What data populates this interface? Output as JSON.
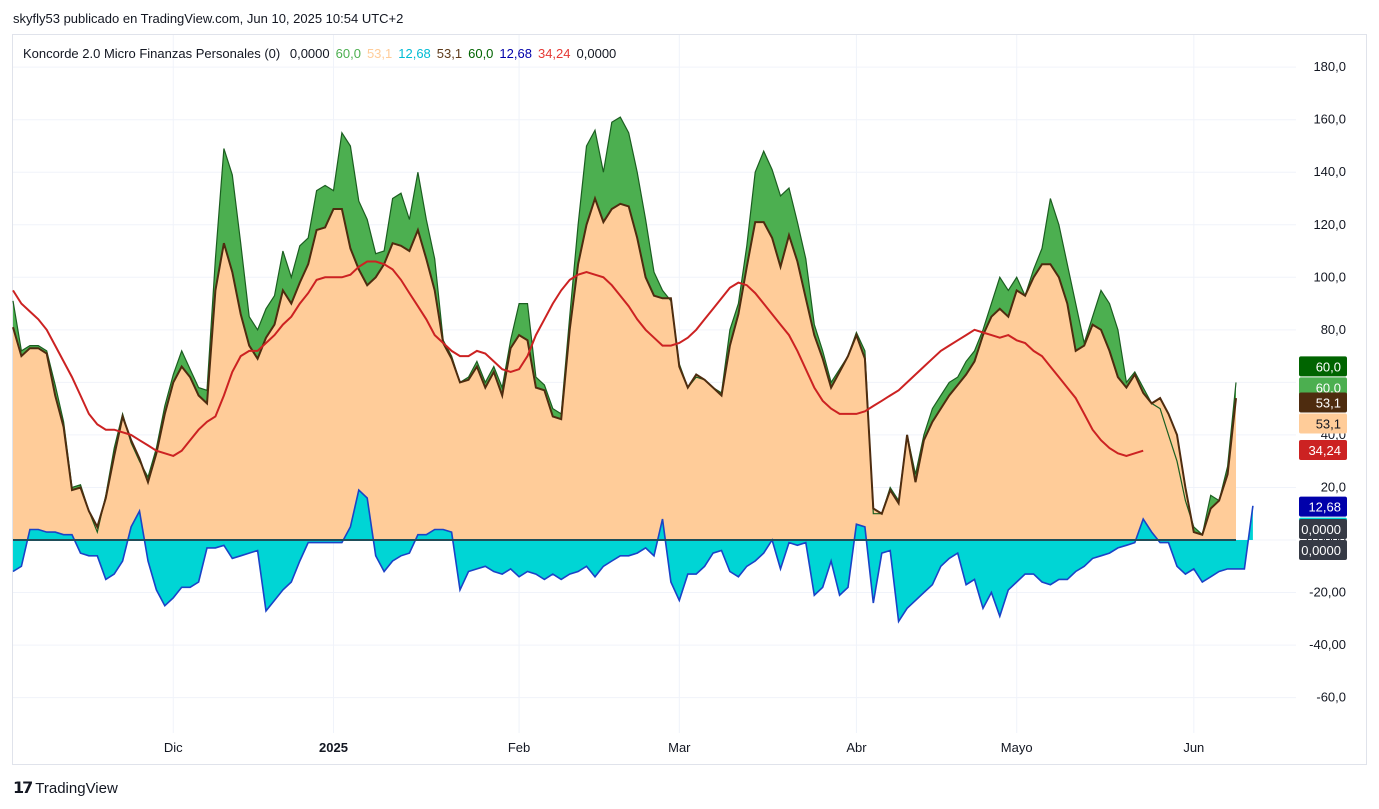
{
  "header": {
    "publisher_line": "skyfly53 publicado en TradingView.com, Jun 10, 2025 10:54 UTC+2"
  },
  "legend": {
    "name": "Koncorde 2.0 Micro Finanzas Personales (0)",
    "values": [
      {
        "text": "0,0000",
        "color": "#131722"
      },
      {
        "text": "60,0",
        "color": "#4caf50"
      },
      {
        "text": "53,1",
        "color": "#ffcc99"
      },
      {
        "text": "12,68",
        "color": "#00bcd4"
      },
      {
        "text": "53,1",
        "color": "#5d3a1a"
      },
      {
        "text": "60,0",
        "color": "#006400"
      },
      {
        "text": "12,68",
        "color": "#0000aa"
      },
      {
        "text": "34,24",
        "color": "#e53935"
      },
      {
        "text": "0,0000",
        "color": "#131722"
      }
    ]
  },
  "footer": {
    "brand": "TradingView",
    "logo_icon": "tradingview-logo-icon"
  },
  "chart_data": {
    "type": "area",
    "x_tick_labels": [
      "Dic",
      "2025",
      "Feb",
      "Mar",
      "Abr",
      "Mayo",
      "Jun"
    ],
    "x_tick_index": [
      19,
      38,
      60,
      79,
      100,
      119,
      140
    ],
    "y_tick_labels": [
      "180,0",
      "160,0",
      "140,0",
      "120,0",
      "100,0",
      "80,0",
      "60,0",
      "40,0",
      "20,0",
      "0,0000",
      "-20,00",
      "-40,00",
      "-60,0"
    ],
    "ylim": [
      -67,
      193
    ],
    "grid": true,
    "series": [
      {
        "color": "#4caf50",
        "outline": "#1b5e20",
        "values": [
          91,
          72,
          74,
          74,
          72,
          59,
          45,
          20,
          21,
          11,
          3,
          17,
          35,
          48,
          37,
          30,
          24,
          35,
          51,
          63,
          72,
          65,
          58,
          57,
          107,
          149,
          139,
          113,
          85,
          80,
          88,
          93,
          110,
          100,
          112,
          115,
          133,
          135,
          133,
          155,
          150,
          129,
          122,
          109,
          110,
          130,
          132,
          122,
          140,
          122,
          107,
          76,
          70,
          60,
          62,
          68,
          60,
          66,
          58,
          76,
          90,
          90,
          62,
          59,
          50,
          48,
          85,
          120,
          150,
          156,
          140,
          159,
          161,
          155,
          140,
          122,
          102,
          95,
          91,
          67,
          58,
          62,
          61,
          58,
          56,
          80,
          90,
          112,
          140,
          148,
          141,
          131,
          134,
          121,
          107,
          82,
          72,
          60,
          65,
          70,
          79,
          72,
          10,
          10,
          20,
          15,
          40,
          25,
          40,
          50,
          55,
          60,
          62,
          68,
          72,
          80,
          90,
          100,
          95,
          100,
          93,
          103,
          111,
          130,
          120,
          105,
          90,
          75,
          85,
          95,
          90,
          80,
          60,
          64,
          58,
          52,
          50,
          40,
          30,
          15,
          5,
          2,
          17,
          15,
          28,
          60
        ]
      },
      {
        "color": "#ffcc99",
        "outline": "#4e2c0f",
        "values": [
          81,
          70,
          73,
          73,
          71,
          55,
          43,
          19,
          20,
          11,
          5,
          16,
          32,
          47,
          38,
          31,
          22,
          33,
          48,
          60,
          66,
          62,
          55,
          52,
          95,
          113,
          102,
          86,
          74,
          69,
          77,
          82,
          95,
          90,
          98,
          105,
          118,
          119,
          126,
          126,
          111,
          103,
          97,
          100,
          105,
          113,
          112,
          110,
          118,
          107,
          95,
          75,
          69,
          60,
          61,
          66,
          58,
          64,
          55,
          73,
          78,
          76,
          58,
          57,
          47,
          46,
          80,
          105,
          120,
          130,
          121,
          126,
          128,
          127,
          115,
          100,
          93,
          92,
          92,
          66,
          58,
          63,
          61,
          58,
          55,
          74,
          86,
          104,
          121,
          121,
          115,
          104,
          116,
          106,
          92,
          78,
          69,
          58,
          64,
          70,
          78,
          69,
          12,
          10,
          19,
          14,
          40,
          22,
          38,
          45,
          50,
          55,
          59,
          63,
          68,
          78,
          85,
          88,
          85,
          95,
          93,
          100,
          105,
          105,
          100,
          90,
          72,
          74,
          82,
          80,
          72,
          62,
          58,
          63,
          56,
          52,
          54,
          48,
          40,
          20,
          3,
          2,
          12,
          15,
          25,
          54
        ]
      },
      {
        "color": "#00d5d5",
        "outline": "#1a43c7",
        "values": [
          -12,
          -10,
          4,
          4,
          3,
          3,
          2,
          2,
          -5,
          -6,
          -6,
          -15,
          -13,
          -8,
          5,
          11,
          -8,
          -19,
          -25,
          -22,
          -18,
          -18,
          -16,
          -3,
          -3,
          -2,
          -7,
          -6,
          -5,
          -4,
          -27,
          -23,
          -19,
          -16,
          -8,
          -1,
          -1,
          -1,
          -1,
          -1,
          5,
          19,
          16,
          -6,
          -12,
          -8,
          -6,
          -5,
          2,
          2,
          4,
          4,
          3,
          -19,
          -12,
          -11,
          -10,
          -12,
          -13,
          -11,
          -14,
          -12,
          -13,
          -15,
          -13,
          -15,
          -13,
          -12,
          -10,
          -14,
          -10,
          -8,
          -6,
          -6,
          -5,
          -3,
          -6,
          8,
          -16,
          -23,
          -13,
          -13,
          -10,
          -5,
          -4,
          -12,
          -14,
          -10,
          -8,
          -5,
          0,
          -11,
          -1,
          -2,
          -1,
          -21,
          -18,
          -8,
          -21,
          -18,
          6,
          5,
          -24,
          -5,
          -4,
          -31,
          -26,
          -23,
          -20,
          -17,
          -10,
          -7,
          -5,
          -17,
          -15,
          -26,
          -20,
          -29,
          -19,
          -16,
          -13,
          -13,
          -16,
          -17,
          -15,
          -15,
          -12,
          -10,
          -7,
          -6,
          -5,
          -3,
          -2,
          -1,
          8,
          3,
          -1,
          -1,
          -10,
          -13,
          -11,
          -16,
          -14,
          -12,
          -11,
          -11,
          -11,
          13
        ]
      },
      {
        "color": "#cc2222",
        "values": [
          95,
          90,
          87,
          84,
          80,
          74,
          68,
          62,
          55,
          48,
          44,
          42,
          42,
          41,
          40,
          38,
          36,
          34,
          33,
          32,
          34,
          38,
          42,
          45,
          47,
          55,
          64,
          70,
          72,
          72,
          75,
          78,
          82,
          85,
          90,
          94,
          99,
          100,
          100,
          100,
          101,
          104,
          106,
          106,
          105,
          103,
          99,
          94,
          89,
          84,
          78,
          75,
          72,
          70,
          70,
          72,
          71,
          68,
          65,
          64,
          65,
          70,
          78,
          84,
          90,
          95,
          99,
          101,
          102,
          101,
          100,
          97,
          93,
          89,
          84,
          80,
          77,
          74,
          74,
          75,
          77,
          80,
          84,
          88,
          92,
          96,
          98,
          97,
          94,
          90,
          86,
          82,
          78,
          72,
          65,
          58,
          53,
          50,
          48,
          48,
          48,
          49,
          51,
          53,
          55,
          57,
          60,
          63,
          66,
          69,
          72,
          74,
          76,
          78,
          80,
          79,
          78,
          77,
          78,
          76,
          75,
          72,
          70,
          66,
          62,
          58,
          54,
          48,
          42,
          38,
          35,
          33,
          32,
          33,
          34
        ]
      }
    ],
    "last_values": {
      "top_green": "60,0",
      "green": "60,0",
      "dark_brown": "53,1",
      "tan": "53,1",
      "red": "34,24",
      "navy": "12,68",
      "cyan": "12,68",
      "zero_a": "0,0000",
      "zero_b": "0,0000"
    },
    "price_tags": [
      {
        "key": "top_green",
        "value": 60,
        "bg": "#006400",
        "fg": "#ffffff",
        "offset": -16
      },
      {
        "key": "green",
        "value": 60,
        "bg": "#4caf50",
        "fg": "#ffffff",
        "offset": 5
      },
      {
        "key": "dark_brown",
        "value": 53.1,
        "bg": "#4e2c0f",
        "fg": "#ffffff",
        "offset": 2
      },
      {
        "key": "tan",
        "value": 53.1,
        "bg": "#ffcc99",
        "fg": "#131722",
        "offset": 23
      },
      {
        "key": "red",
        "value": 34.24,
        "bg": "#cc2222",
        "fg": "#ffffff",
        "offset": 0
      },
      {
        "key": "navy",
        "value": 12.68,
        "bg": "#0000aa",
        "fg": "#ffffff",
        "offset": 0
      },
      {
        "key": "cyan",
        "value": 12.68,
        "bg": "#00d5d5",
        "fg": "#131722",
        "offset": 21
      },
      {
        "key": "zero_a",
        "value": 0,
        "bg": "#363a45",
        "fg": "#ffffff",
        "offset": -11
      },
      {
        "key": "zero_b",
        "value": 0,
        "bg": "#363a45",
        "fg": "#ffffff",
        "offset": 10
      }
    ]
  }
}
